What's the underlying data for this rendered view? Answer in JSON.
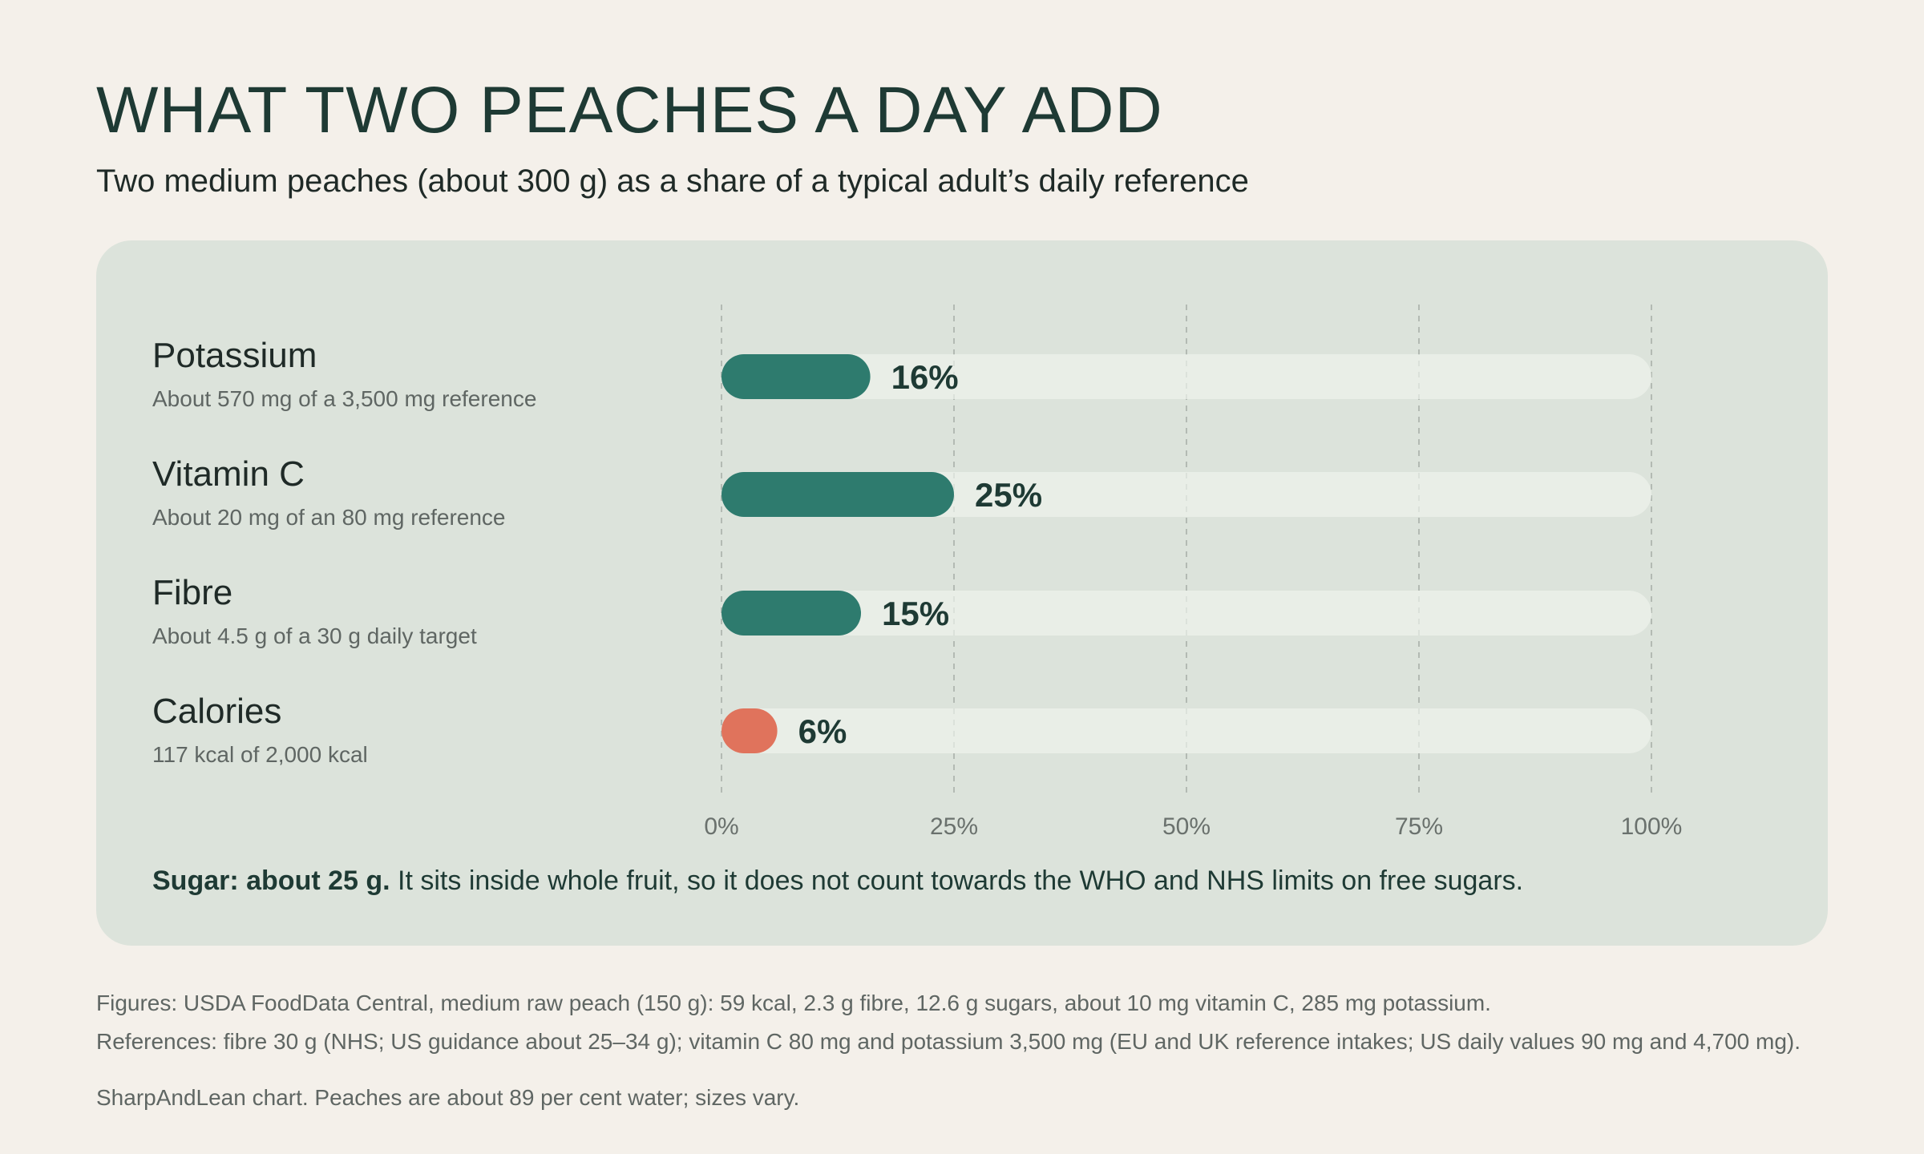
{
  "title": "WHAT TWO PEACHES A DAY ADD",
  "subtitle": "Two medium peaches (about 300 g) as a share of a typical adult’s daily reference",
  "colors": {
    "background": "#f4f0ea",
    "card": "#dce3db",
    "track": "#e9eee7",
    "bar_nutrient": "#2e7b6e",
    "bar_calories": "#e0735c",
    "text_dark": "#1e3a34"
  },
  "chart_data": {
    "type": "bar",
    "orientation": "horizontal",
    "unit": "%",
    "xlim": [
      0,
      100
    ],
    "ticks": [
      "0%",
      "25%",
      "50%",
      "75%",
      "100%"
    ],
    "tick_values": [
      0,
      25,
      50,
      75,
      100
    ],
    "grid": "vertical-dashed",
    "categories": [
      "Potassium",
      "Vitamin C",
      "Fibre",
      "Calories"
    ],
    "values": [
      16,
      25,
      15,
      6
    ],
    "value_labels": [
      "16%",
      "25%",
      "15%",
      "6%"
    ],
    "descriptions": [
      "About 570 mg of a 3,500 mg reference",
      "About 20 mg of an 80 mg reference",
      "About 4.5 g of a 30 g daily target",
      "117 kcal of 2,000 kcal"
    ],
    "bar_colors": [
      "#2e7b6e",
      "#2e7b6e",
      "#2e7b6e",
      "#e0735c"
    ]
  },
  "sugar_note": {
    "bold": "Sugar: about 25 g.",
    "text": " It sits inside whole fruit, so it does not count towards the WHO and NHS limits on free sugars."
  },
  "footnotes": {
    "figures": "Figures: USDA FoodData Central, medium raw peach (150 g): 59 kcal, 2.3 g fibre, 12.6 g sugars, about 10 mg vitamin C, 285 mg potassium.",
    "references": "References: fibre 30 g (NHS; US guidance about 25–34 g); vitamin C 80 mg and potassium 3,500 mg (EU and UK reference intakes; US daily values 90 mg and 4,700 mg).",
    "credit": "SharpAndLean chart. Peaches are about 89 per cent water; sizes vary."
  }
}
